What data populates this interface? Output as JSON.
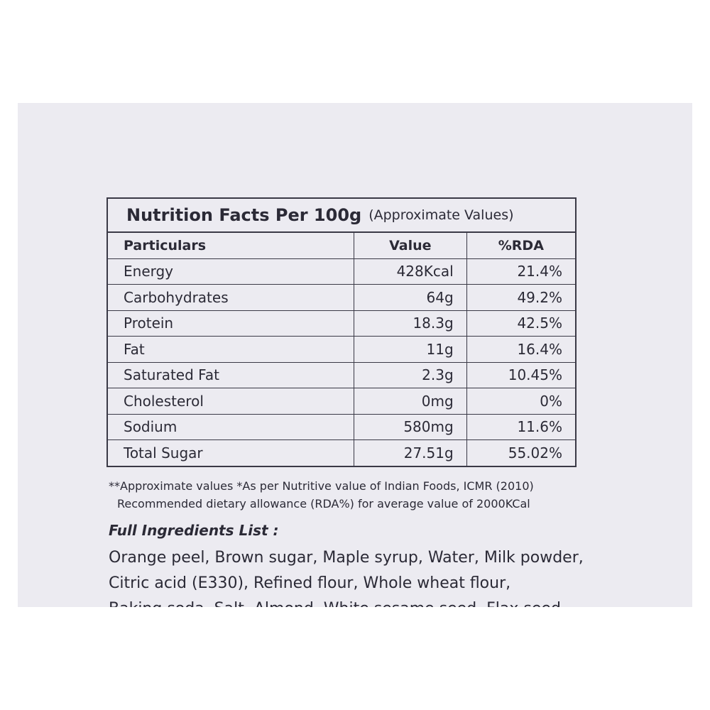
{
  "table": {
    "title": "Nutrition Facts Per 100g",
    "subtitle": "(Approximate Values)",
    "headers": [
      "Particulars",
      "Value",
      "%RDA"
    ],
    "rows": [
      [
        "Energy",
        "428Kcal",
        "21.4%"
      ],
      [
        "Carbohydrates",
        "64g",
        "49.2%"
      ],
      [
        "Protein",
        "18.3g",
        "42.5%"
      ],
      [
        "Fat",
        "11g",
        "16.4%"
      ],
      [
        "Saturated Fat",
        "2.3g",
        "10.45%"
      ],
      [
        "Cholesterol",
        "0mg",
        "0%"
      ],
      [
        "Sodium",
        "580mg",
        "11.6%"
      ],
      [
        "Total Sugar",
        "27.51g",
        "55.02%"
      ]
    ]
  },
  "notes": [
    "**Approximate values *As per Nutritive value of Indian Foods, ICMR (2010)",
    "Recommended dietary allowance (RDA%) for average value of 2000KCal"
  ],
  "ingredients": {
    "heading": "Full Ingredients List :",
    "lines": [
      "Orange peel, Brown sugar, Maple syrup, Water, Milk powder,",
      "Citric acid (E330), Refined flour, Whole wheat flour,",
      "Baking soda, Salt, Almond, White sesame seed, Flax seed"
    ]
  }
}
